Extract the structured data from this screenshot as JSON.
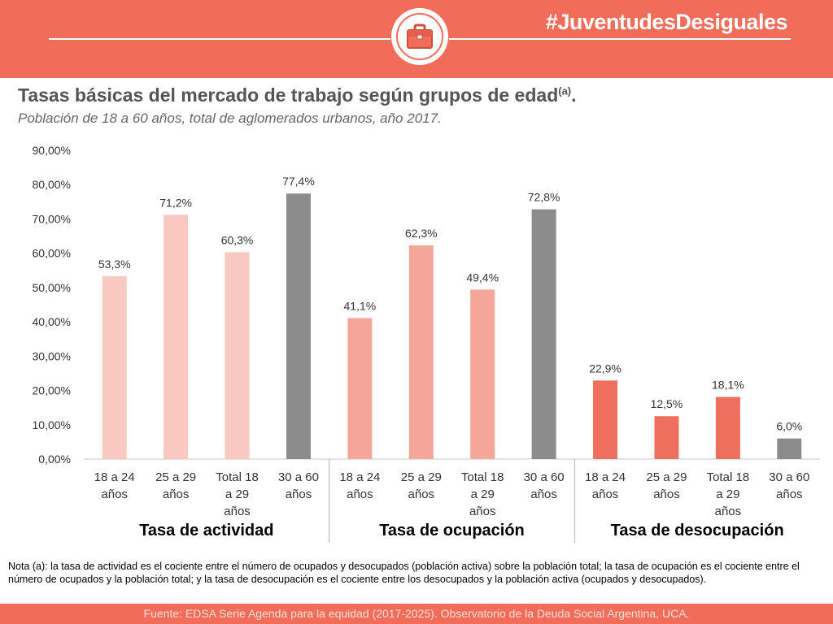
{
  "header": {
    "hashtag": "#JuventudesDesiguales",
    "icon": "briefcase-icon",
    "background_color": "#f26c5a"
  },
  "title_main": "Tasas básicas del mercado de trabajo según grupos de edad",
  "title_sup": "(a)",
  "title_end": ".",
  "subtitle": "Población de 18 a 60 años, total de aglomerados urbanos, año 2017.",
  "chart_data": {
    "type": "bar",
    "ylim": [
      0,
      90
    ],
    "y_ticks": [
      "0,00%",
      "10,00%",
      "20,00%",
      "30,00%",
      "40,00%",
      "50,00%",
      "60,00%",
      "70,00%",
      "80,00%",
      "90,00%"
    ],
    "grid": false,
    "groups": [
      {
        "name": "Tasa de actividad",
        "bars": [
          {
            "label": [
              "18 a 24",
              "años"
            ],
            "value": 53.3,
            "value_label": "53,3%",
            "color": "#f9c8c0"
          },
          {
            "label": [
              "25 a 29",
              "años"
            ],
            "value": 71.2,
            "value_label": "71,2%",
            "color": "#f9c8c0"
          },
          {
            "label": [
              "Total 18",
              "a 29",
              "años"
            ],
            "value": 60.3,
            "value_label": "60,3%",
            "color": "#f9c8c0"
          },
          {
            "label": [
              "30 a 60",
              "años"
            ],
            "value": 77.4,
            "value_label": "77,4%",
            "color": "#8c8c8c"
          }
        ]
      },
      {
        "name": "Tasa de ocupación",
        "bars": [
          {
            "label": [
              "18 a 24",
              "años"
            ],
            "value": 41.1,
            "value_label": "41,1%",
            "color": "#f4a799"
          },
          {
            "label": [
              "25 a 29",
              "años"
            ],
            "value": 62.3,
            "value_label": "62,3%",
            "color": "#f4a799"
          },
          {
            "label": [
              "Total 18",
              "a 29",
              "años"
            ],
            "value": 49.4,
            "value_label": "49,4%",
            "color": "#f4a799"
          },
          {
            "label": [
              "30 a 60",
              "años"
            ],
            "value": 72.8,
            "value_label": "72,8%",
            "color": "#8c8c8c"
          }
        ]
      },
      {
        "name": "Tasa de desocupación",
        "bars": [
          {
            "label": [
              "18 a 24",
              "años"
            ],
            "value": 22.9,
            "value_label": "22,9%",
            "color": "#ef6f5e"
          },
          {
            "label": [
              "25 a 29",
              "años"
            ],
            "value": 12.5,
            "value_label": "12,5%",
            "color": "#ef6f5e"
          },
          {
            "label": [
              "Total 18",
              "a 29",
              "años"
            ],
            "value": 18.1,
            "value_label": "18,1%",
            "color": "#ef6f5e"
          },
          {
            "label": [
              "30 a 60",
              "años"
            ],
            "value": 6.0,
            "value_label": "6,0%",
            "color": "#8c8c8c"
          }
        ]
      }
    ]
  },
  "note": "Nota (a): la tasa de actividad es el cociente entre el número de ocupados y desocupados (población activa) sobre la población total; la tasa de ocupación es el cociente entre el número de ocupados y la población total; y la tasa de desocupación es el cociente entre los desocupados y la población activa (ocupados y desocupados).",
  "footer": "Fuente: EDSA Serie Agenda para la equidad (2017-2025). Observatorio de la Deuda Social Argentina, UCA."
}
